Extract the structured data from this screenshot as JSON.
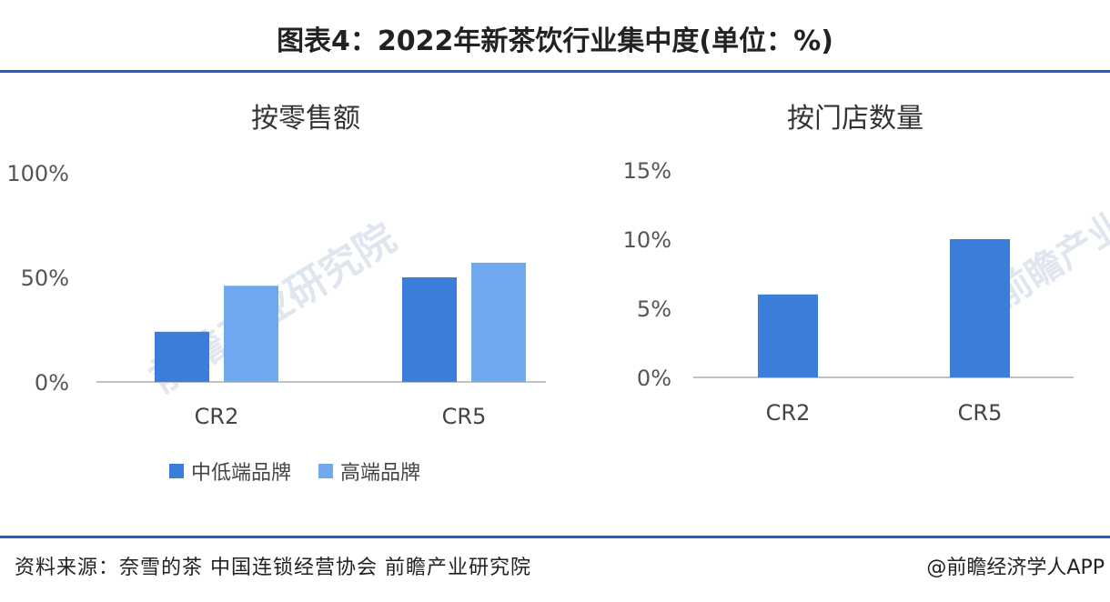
{
  "title": "图表4：2022年新茶饮行业集中度(单位：%)",
  "source": "资料来源：奈雪的茶 中国连锁经营协会 前瞻产业研究院",
  "credit": "@前瞻经济学人APP",
  "watermark": "前瞻产业研究院",
  "colors": {
    "accent": "#1f5fbf",
    "series_low": "#3a7ddb",
    "series_high": "#6fa8ee",
    "axis": "#bfbfbf"
  },
  "chart_data": [
    {
      "type": "bar",
      "title": "按零售额",
      "categories": [
        "CR2",
        "CR5"
      ],
      "series": [
        {
          "name": "中低端品牌",
          "values": [
            24,
            50
          ]
        },
        {
          "name": "高端品牌",
          "values": [
            46,
            57
          ]
        }
      ],
      "yticks": [
        "0%",
        "50%",
        "100%"
      ],
      "ylim": [
        0,
        100
      ],
      "legend": "bottom",
      "grid": false
    },
    {
      "type": "bar",
      "title": "按门店数量",
      "categories": [
        "CR2",
        "CR5"
      ],
      "series": [
        {
          "values": [
            6,
            10
          ]
        }
      ],
      "yticks": [
        "0%",
        "5%",
        "10%",
        "15%"
      ],
      "ylim": [
        0,
        15
      ],
      "grid": false
    }
  ]
}
